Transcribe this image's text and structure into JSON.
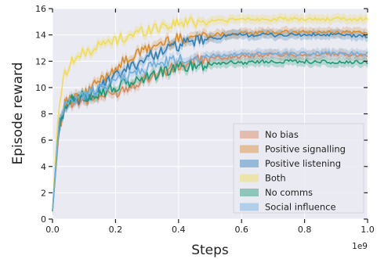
{
  "chart_data": {
    "type": "line",
    "xlabel": "Steps",
    "ylabel": "Episode reward",
    "x_offset_label": "1e9",
    "xlim": [
      0,
      1.0
    ],
    "ylim": [
      0,
      16
    ],
    "x_ticks": [
      0.0,
      0.2,
      0.4,
      0.6,
      0.8,
      1.0
    ],
    "x_tick_labels": [
      "0.0",
      "0.2",
      "0.4",
      "0.6",
      "0.8",
      "1.0"
    ],
    "y_ticks": [
      0,
      2,
      4,
      6,
      8,
      10,
      12,
      14,
      16
    ],
    "y_tick_labels": [
      "0",
      "2",
      "4",
      "6",
      "8",
      "10",
      "12",
      "14",
      "16"
    ],
    "grid": true,
    "legend_position": "lower-right",
    "x": [
      0.0,
      0.02,
      0.04,
      0.06,
      0.08,
      0.1,
      0.15,
      0.2,
      0.25,
      0.3,
      0.35,
      0.4,
      0.45,
      0.5,
      0.55,
      0.6,
      0.7,
      0.8,
      0.9,
      1.0
    ],
    "series": [
      {
        "name": "No bias",
        "color": "#d9885a",
        "values": [
          0.6,
          6.5,
          8.8,
          8.9,
          9.0,
          9.0,
          9.3,
          9.6,
          10.2,
          10.8,
          11.2,
          11.6,
          12.0,
          12.2,
          12.3,
          12.4,
          12.5,
          12.5,
          12.5,
          12.5
        ]
      },
      {
        "name": "Positive signalling",
        "color": "#d98c2e",
        "values": [
          0.6,
          7.5,
          8.8,
          9.0,
          9.2,
          9.5,
          10.5,
          11.5,
          12.3,
          12.9,
          13.4,
          13.7,
          13.9,
          14.0,
          14.1,
          14.1,
          14.2,
          14.2,
          14.2,
          14.2
        ]
      },
      {
        "name": "Positive listening",
        "color": "#2f7fb8",
        "values": [
          0.6,
          7.0,
          8.6,
          8.8,
          9.0,
          9.2,
          10.0,
          10.8,
          11.6,
          12.3,
          12.8,
          13.2,
          13.5,
          13.7,
          13.9,
          14.0,
          14.0,
          14.0,
          14.0,
          13.9
        ]
      },
      {
        "name": "Both",
        "color": "#f0dd55",
        "values": [
          0.6,
          8.8,
          11.2,
          12.0,
          12.3,
          12.6,
          13.2,
          13.6,
          14.0,
          14.4,
          14.7,
          14.9,
          15.0,
          15.1,
          15.1,
          15.2,
          15.2,
          15.2,
          15.2,
          15.2
        ]
      },
      {
        "name": "No comms",
        "color": "#1c9a75",
        "values": [
          0.6,
          7.2,
          8.8,
          9.0,
          9.2,
          9.3,
          9.6,
          10.0,
          10.4,
          10.8,
          11.2,
          11.5,
          11.7,
          11.8,
          11.9,
          11.9,
          12.0,
          12.0,
          11.9,
          11.9
        ]
      },
      {
        "name": "Social influence",
        "color": "#6fb0de",
        "values": [
          0.6,
          7.0,
          8.8,
          9.0,
          9.2,
          9.4,
          10.0,
          10.5,
          11.0,
          11.5,
          11.9,
          12.1,
          12.3,
          12.4,
          12.5,
          12.5,
          12.6,
          12.6,
          12.6,
          12.6
        ]
      }
    ]
  }
}
